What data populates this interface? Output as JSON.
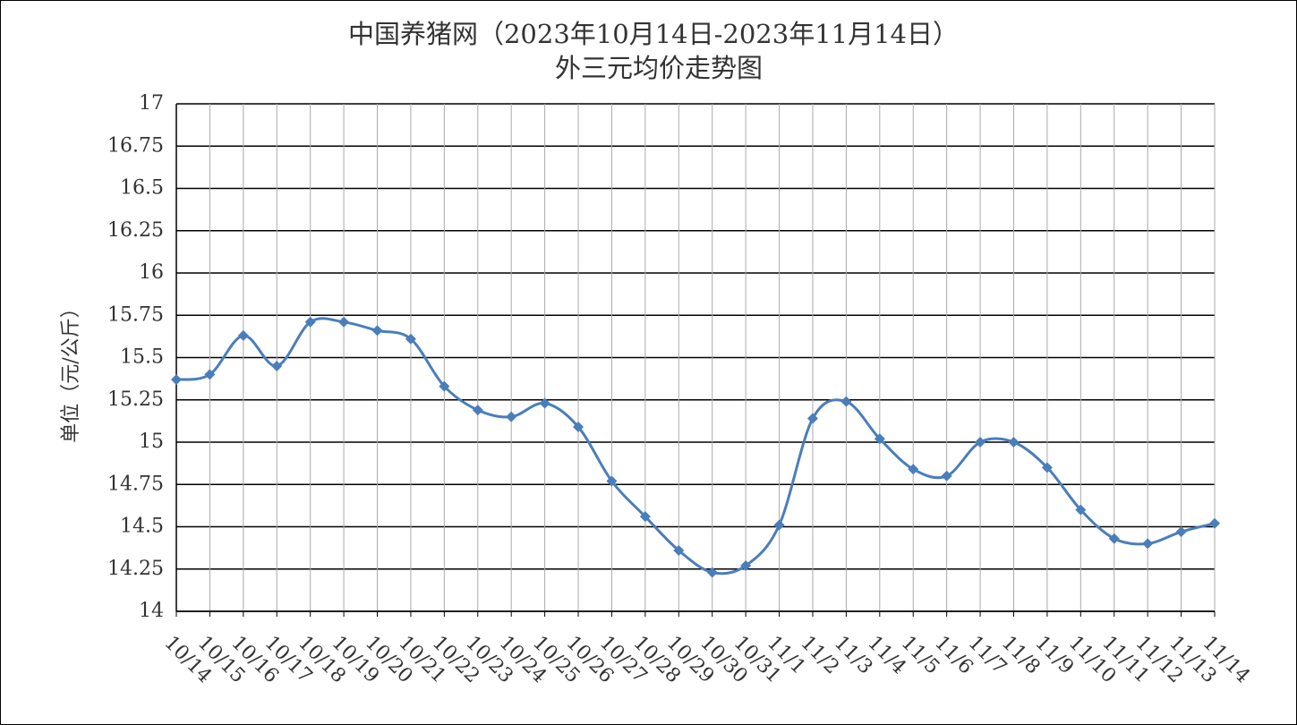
{
  "chart_data": {
    "type": "line",
    "title": "中国养猪网（2023年10月14日-2023年11月14日）",
    "subtitle": "外三元均价走势图",
    "y_label": "单位（元/公斤）",
    "categories": [
      "10/14",
      "10/15",
      "10/16",
      "10/17",
      "10/18",
      "10/19",
      "10/20",
      "10/21",
      "10/22",
      "10/23",
      "10/24",
      "10/25",
      "10/26",
      "10/27",
      "10/28",
      "10/29",
      "10/30",
      "10/31",
      "11/1",
      "11/2",
      "11/3",
      "11/4",
      "11/5",
      "11/6",
      "11/7",
      "11/8",
      "11/9",
      "11/10",
      "11/11",
      "11/12",
      "11/13",
      "11/14"
    ],
    "values": [
      15.37,
      15.4,
      15.63,
      15.45,
      15.71,
      15.71,
      15.66,
      15.61,
      15.33,
      15.19,
      15.15,
      15.23,
      15.09,
      14.77,
      14.56,
      14.36,
      14.23,
      14.27,
      14.51,
      15.14,
      15.24,
      15.02,
      14.84,
      14.8,
      15.0,
      15.0,
      14.85,
      14.6,
      14.43,
      14.4,
      14.47,
      14.52
    ],
    "color": "#4a7ebb",
    "ylim": [
      14,
      17
    ],
    "yticks": [
      14,
      14.25,
      14.5,
      14.75,
      15,
      15.25,
      15.5,
      15.75,
      16,
      16.25,
      16.5,
      16.75,
      17
    ],
    "grid": true
  }
}
